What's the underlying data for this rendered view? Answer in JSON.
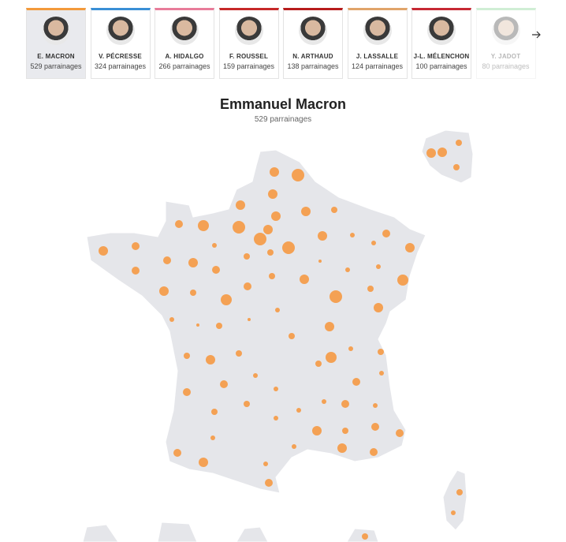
{
  "candidates": [
    {
      "name": "E. MACRON",
      "count": "529 parrainages"
    },
    {
      "name": "V. PÉCRESSE",
      "count": "324 parrainages"
    },
    {
      "name": "A. HIDALGO",
      "count": "266 parrainages"
    },
    {
      "name": "F. ROUSSEL",
      "count": "159 parrainages"
    },
    {
      "name": "N. ARTHAUD",
      "count": "138 parrainages"
    },
    {
      "name": "J. LASSALLE",
      "count": "124 parrainages"
    },
    {
      "name": "J-L. MÉLENCHON",
      "count": "100 parrainages"
    },
    {
      "name": "Y. JADOT",
      "count": "80 parrainages"
    }
  ],
  "selected": {
    "title": "Emmanuel Macron",
    "subtitle": "529 parrainages"
  }
}
